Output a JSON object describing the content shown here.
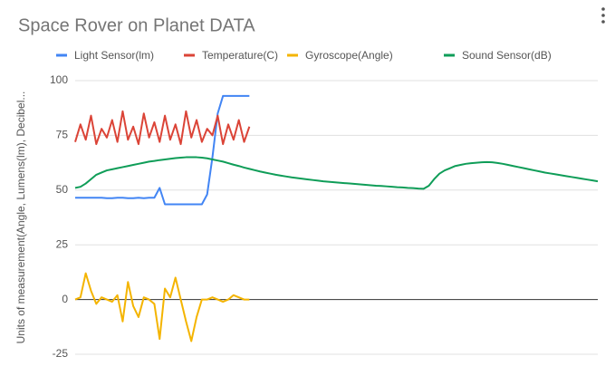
{
  "chart_data": {
    "type": "line",
    "title": "Space Rover on Planet DATA",
    "y_label": "Units of measurement(Angle, Lumens(lm), Decibel...",
    "ylim": [
      -25,
      100
    ],
    "yticks": [
      -25,
      0,
      25,
      50,
      75,
      100
    ],
    "grid": true,
    "series": [
      {
        "name": "Light Sensor(lm)",
        "color": "#4285f4",
        "values": [
          46.5,
          46.5,
          46.5,
          46.5,
          46.5,
          46.5,
          46.3,
          46.3,
          46.5,
          46.5,
          46.3,
          46.3,
          46.5,
          46.3,
          46.5,
          46.5,
          51,
          43.5,
          43.5,
          43.5,
          43.5,
          43.5,
          43.5,
          43.5,
          43.5,
          48,
          65,
          85,
          93,
          93,
          93,
          93,
          93,
          93,
          null,
          null,
          null,
          null,
          null,
          null,
          null,
          null,
          null,
          null,
          null,
          null,
          null,
          null,
          null,
          null,
          null,
          null,
          null,
          null,
          null,
          null,
          null,
          null,
          null,
          null,
          null,
          null,
          null,
          null,
          null,
          null,
          null,
          null,
          null,
          null,
          null,
          null,
          null,
          null,
          null,
          null,
          null,
          null,
          null,
          null,
          null,
          null,
          null,
          null,
          null,
          null,
          null,
          null,
          null,
          null,
          null,
          null,
          null,
          null,
          null,
          null,
          null,
          null,
          null,
          null
        ]
      },
      {
        "name": "Temperature(C)",
        "color": "#db4437",
        "values": [
          72,
          80,
          73,
          84,
          71,
          78,
          74,
          82,
          72,
          86,
          73,
          79,
          71,
          85,
          74,
          81,
          72,
          84,
          73,
          80,
          71,
          86,
          74,
          82,
          72,
          78,
          75,
          84,
          71,
          80,
          73,
          82,
          72,
          79,
          null,
          null,
          null,
          null,
          null,
          null,
          null,
          null,
          null,
          null,
          null,
          null,
          null,
          null,
          null,
          null,
          null,
          null,
          null,
          null,
          null,
          null,
          null,
          null,
          null,
          null,
          null,
          null,
          null,
          null,
          null,
          null,
          null,
          null,
          null,
          null,
          null,
          null,
          null,
          null,
          null,
          null,
          null,
          null,
          null,
          null,
          null,
          null,
          null,
          null,
          null,
          null,
          null,
          null,
          null,
          null,
          null,
          null,
          null,
          null,
          null,
          null,
          null,
          null,
          null,
          null
        ]
      },
      {
        "name": "Gyroscope(Angle)",
        "color": "#f4b400",
        "values": [
          0,
          1,
          12,
          4,
          -2,
          1,
          0,
          -1,
          2,
          -10,
          8,
          -3,
          -8,
          1,
          0,
          -2,
          -18,
          5,
          1,
          10,
          0,
          -10,
          -19,
          -8,
          0,
          0,
          1,
          0,
          -1,
          0,
          2,
          1,
          0,
          0,
          null,
          null,
          null,
          null,
          null,
          null,
          null,
          null,
          null,
          null,
          null,
          null,
          null,
          null,
          null,
          null,
          null,
          null,
          null,
          null,
          null,
          null,
          null,
          null,
          null,
          null,
          null,
          null,
          null,
          null,
          null,
          null,
          null,
          null,
          null,
          null,
          null,
          null,
          null,
          null,
          null,
          null,
          null,
          null,
          null,
          null,
          null,
          null,
          null,
          null,
          null,
          null,
          null,
          null,
          null,
          null,
          null,
          null,
          null,
          null,
          null,
          null,
          null,
          null,
          null,
          null
        ]
      },
      {
        "name": "Sound Sensor(dB)",
        "color": "#0f9d58",
        "values": [
          51,
          51.5,
          53,
          55,
          57,
          58,
          59,
          59.5,
          60,
          60.5,
          61,
          61.5,
          62,
          62.5,
          63,
          63.3,
          63.7,
          64,
          64.3,
          64.6,
          64.8,
          65,
          65,
          65,
          64.8,
          64.5,
          64,
          63.5,
          63,
          62.3,
          61.6,
          61,
          60.3,
          59.7,
          59.1,
          58.5,
          58,
          57.5,
          57,
          56.6,
          56.2,
          55.8,
          55.5,
          55.2,
          54.9,
          54.6,
          54.3,
          54,
          53.8,
          53.6,
          53.4,
          53.2,
          53,
          52.8,
          52.6,
          52.4,
          52.2,
          52,
          51.9,
          51.7,
          51.5,
          51.3,
          51.2,
          51,
          50.9,
          50.7,
          50.6,
          52,
          55,
          57.5,
          59,
          60,
          61,
          61.5,
          62,
          62.3,
          62.5,
          62.7,
          62.8,
          62.7,
          62.4,
          62,
          61.5,
          61,
          60.5,
          60,
          59.5,
          59,
          58.5,
          58,
          57.6,
          57.2,
          56.8,
          56.4,
          56,
          55.6,
          55.2,
          54.8,
          54.4,
          54
        ]
      }
    ]
  }
}
